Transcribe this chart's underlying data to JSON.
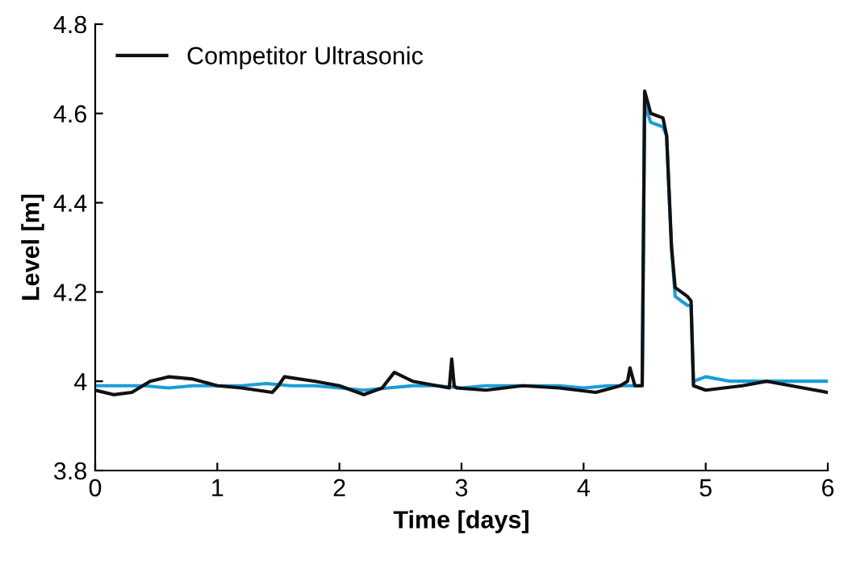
{
  "chart_data": {
    "type": "line",
    "xlabel": "Time [days]",
    "ylabel": "Level [m]",
    "xlim": [
      0,
      6
    ],
    "ylim": [
      3.8,
      4.8
    ],
    "xticks": [
      0,
      1,
      2,
      3,
      4,
      5,
      6
    ],
    "yticks": [
      3.8,
      4,
      4.2,
      4.4,
      4.6,
      4.8
    ],
    "grid": false,
    "legend": "top left",
    "line_style": "solid",
    "marker": "none",
    "series": [
      {
        "color": "#1a9ed8",
        "x": [
          0,
          0.2,
          0.4,
          0.6,
          0.8,
          1.0,
          1.2,
          1.4,
          1.6,
          1.8,
          2.0,
          2.2,
          2.4,
          2.6,
          2.8,
          3.0,
          3.2,
          3.4,
          3.6,
          3.8,
          4.0,
          4.2,
          4.4,
          4.48,
          4.5,
          4.55,
          4.65,
          4.68,
          4.72,
          4.75,
          4.85,
          4.88,
          4.9,
          5.0,
          5.2,
          5.4,
          5.6,
          5.8,
          6.0
        ],
        "values": [
          3.99,
          3.99,
          3.99,
          3.985,
          3.99,
          3.99,
          3.99,
          3.995,
          3.99,
          3.99,
          3.985,
          3.98,
          3.985,
          3.99,
          3.99,
          3.985,
          3.99,
          3.99,
          3.99,
          3.99,
          3.985,
          3.99,
          3.99,
          3.99,
          4.62,
          4.58,
          4.57,
          4.55,
          4.3,
          4.19,
          4.17,
          4.17,
          4.0,
          4.01,
          4.0,
          4.0,
          4.0,
          4.0,
          4.0
        ]
      },
      {
        "name": "Competitor Ultrasonic",
        "color": "#111111",
        "x": [
          0,
          0.15,
          0.3,
          0.45,
          0.6,
          0.8,
          1.0,
          1.2,
          1.45,
          1.5,
          1.55,
          1.8,
          2.0,
          2.2,
          2.35,
          2.45,
          2.6,
          2.9,
          2.92,
          2.94,
          2.96,
          3.2,
          3.5,
          3.8,
          4.1,
          4.3,
          4.36,
          4.38,
          4.42,
          4.48,
          4.5,
          4.55,
          4.65,
          4.68,
          4.72,
          4.75,
          4.85,
          4.88,
          4.9,
          5.0,
          5.3,
          5.5,
          5.7,
          6.0
        ],
        "values": [
          3.98,
          3.97,
          3.975,
          4.0,
          4.01,
          4.005,
          3.99,
          3.985,
          3.975,
          3.99,
          4.01,
          4.0,
          3.99,
          3.97,
          3.985,
          4.02,
          4.0,
          3.985,
          4.05,
          3.99,
          3.985,
          3.98,
          3.99,
          3.985,
          3.975,
          3.99,
          4.0,
          4.03,
          3.99,
          3.99,
          4.65,
          4.6,
          4.59,
          4.55,
          4.3,
          4.21,
          4.19,
          4.18,
          3.99,
          3.98,
          3.99,
          4.0,
          3.99,
          3.975
        ]
      }
    ]
  }
}
